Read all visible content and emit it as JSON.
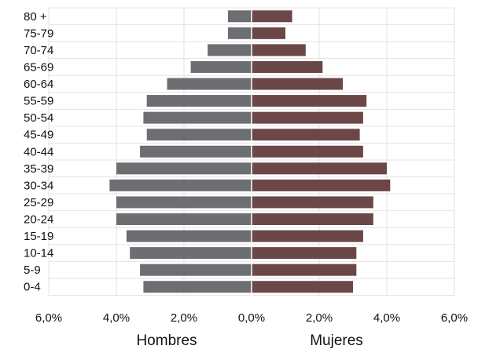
{
  "chart_data": {
    "type": "bar",
    "orientation": "horizontal",
    "layout": "population-pyramid",
    "categories": [
      "80 +",
      "75-79",
      "70-74",
      "65-69",
      "60-64",
      "55-59",
      "50-54",
      "45-49",
      "40-44",
      "35-39",
      "30-34",
      "25-29",
      "20-24",
      "15-19",
      "10-14",
      "5-9",
      "0-4"
    ],
    "series": [
      {
        "name": "Hombres",
        "side": "left",
        "color": "#6d6e71",
        "values": [
          0.7,
          0.7,
          1.3,
          1.8,
          2.5,
          3.1,
          3.2,
          3.1,
          3.3,
          4.0,
          4.2,
          4.0,
          4.0,
          3.7,
          3.6,
          3.3,
          3.2
        ]
      },
      {
        "name": "Mujeres",
        "side": "right",
        "color": "#6b4747",
        "values": [
          1.2,
          1.0,
          1.6,
          2.1,
          2.7,
          3.4,
          3.3,
          3.2,
          3.3,
          4.0,
          4.1,
          3.6,
          3.6,
          3.3,
          3.1,
          3.1,
          3.0
        ]
      }
    ],
    "xlim": [
      -6,
      6
    ],
    "x_ticks": [
      "6,0%",
      "4,0%",
      "2,0%",
      "0,0%",
      "2,0%",
      "4,0%",
      "6,0%"
    ],
    "grid": true
  }
}
